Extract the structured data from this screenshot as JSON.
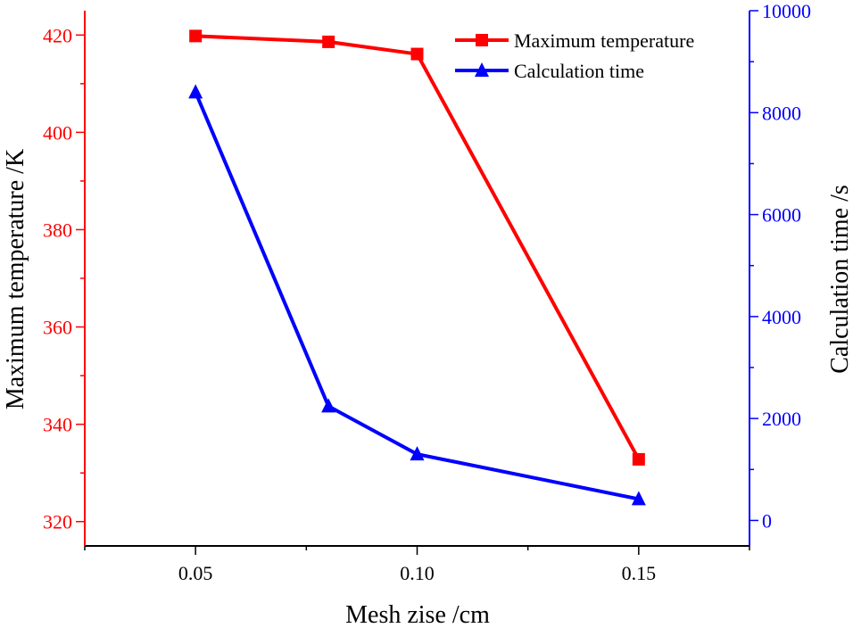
{
  "colors": {
    "temperature": "#ff0000",
    "time": "#0000ff",
    "axis": "#000000"
  },
  "chart_data": {
    "type": "line",
    "title": "",
    "xlabel": "Mesh zise /cm",
    "ylabel_left": "Maximum temperature /K",
    "ylabel_right": "Calculation time /s",
    "xlim": [
      0.025,
      0.175
    ],
    "ylim_left": [
      315,
      425
    ],
    "ylim_right": [
      -500,
      10000
    ],
    "grid": false,
    "legend_position": "top-right",
    "x_ticks": [
      0.05,
      0.1,
      0.15
    ],
    "x_tick_labels": [
      "0.05",
      "0.10",
      "0.15"
    ],
    "y_left_ticks": [
      320,
      340,
      360,
      380,
      400,
      420
    ],
    "y_left_tick_labels": [
      "320",
      "340",
      "360",
      "380",
      "400",
      "420"
    ],
    "y_right_ticks": [
      0,
      2000,
      4000,
      6000,
      8000,
      10000
    ],
    "y_right_tick_labels": [
      "0",
      "2000",
      "4000",
      "6000",
      "8000",
      "10000"
    ],
    "series": [
      {
        "name": "Maximum temperature",
        "axis": "left",
        "marker": "square",
        "x": [
          0.05,
          0.08,
          0.1,
          0.15
        ],
        "values": [
          419.8,
          418.6,
          416.1,
          332.8
        ]
      },
      {
        "name": "Calculation time",
        "axis": "right",
        "marker": "triangle",
        "x": [
          0.05,
          0.08,
          0.1,
          0.15
        ],
        "values": [
          8400,
          2240,
          1300,
          420
        ]
      }
    ]
  }
}
